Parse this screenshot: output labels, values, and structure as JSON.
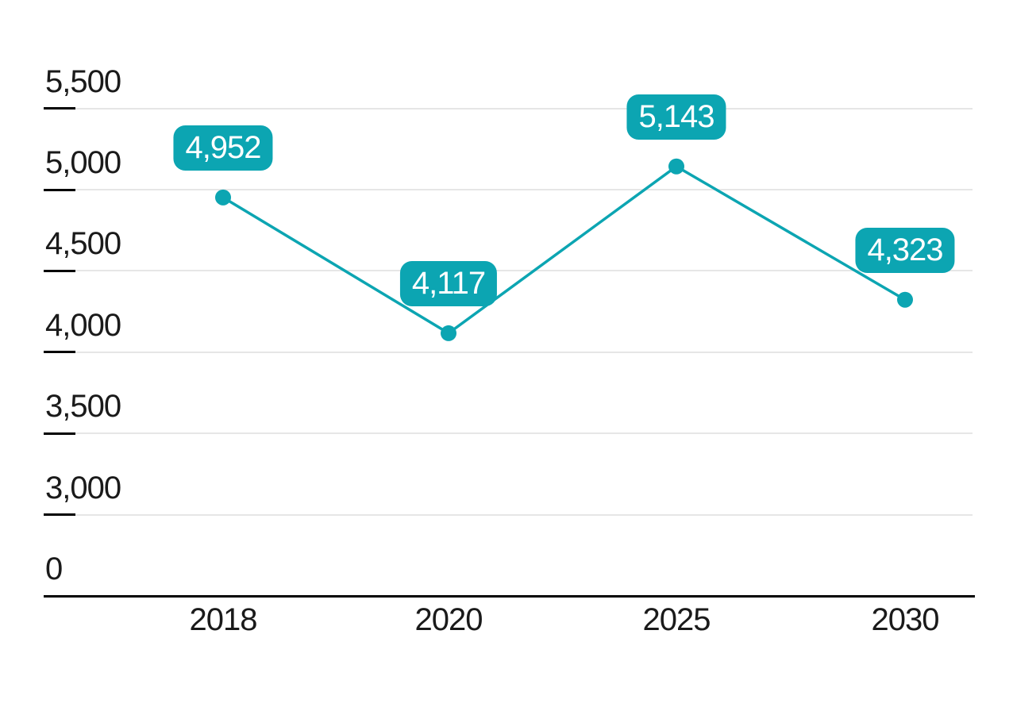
{
  "chart_data": {
    "type": "line",
    "categories": [
      "2018",
      "2020",
      "2025",
      "2030"
    ],
    "values": [
      4952,
      4117,
      5143,
      4323
    ],
    "data_labels": [
      "4,952",
      "4,117",
      "5,143",
      "4,323"
    ],
    "y_ticks": [
      {
        "label": "5,500",
        "value": 5500
      },
      {
        "label": "5,000",
        "value": 5000
      },
      {
        "label": "4,500",
        "value": 4500
      },
      {
        "label": "4,000",
        "value": 4000
      },
      {
        "label": "3,500",
        "value": 3500
      },
      {
        "label": "3,000",
        "value": 3000
      },
      {
        "label": "0",
        "value": 0
      }
    ],
    "title": "",
    "xlabel": "",
    "ylabel": "",
    "axis_note": "broken y-axis: 0 baseline drawn one tick step below 3,000",
    "grid": "horizontal",
    "legend": "none"
  },
  "colors": {
    "series": "#0ca5b2",
    "data_label_background": "#0ca5b2",
    "data_label_text": "#ffffff",
    "gridline": "#e6e6e6",
    "axis_line": "#000000",
    "tick_dash": "#000000",
    "axis_text": "#1a1a1a",
    "background": "#ffffff"
  }
}
